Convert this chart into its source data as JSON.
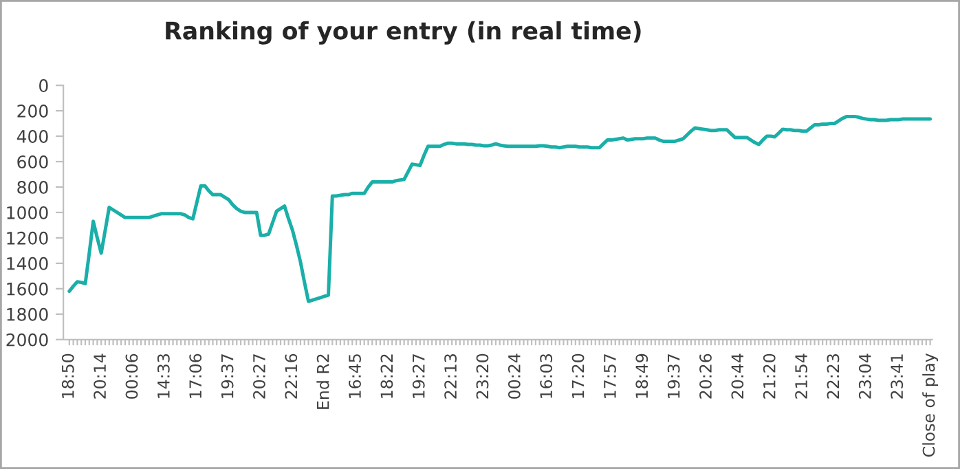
{
  "chart_data": {
    "type": "line",
    "title": "Ranking of your entry (in real time)",
    "categories": [
      "18:50",
      null,
      null,
      null,
      null,
      null,
      null,
      null,
      "20:14",
      null,
      null,
      null,
      null,
      null,
      null,
      null,
      "00:06",
      null,
      null,
      null,
      null,
      null,
      null,
      null,
      "14:33",
      null,
      null,
      null,
      null,
      null,
      null,
      null,
      "17:06",
      null,
      null,
      null,
      null,
      null,
      null,
      null,
      "19:37",
      null,
      null,
      null,
      null,
      null,
      null,
      null,
      "20:27",
      null,
      null,
      null,
      null,
      null,
      null,
      null,
      "22:16",
      null,
      null,
      null,
      null,
      null,
      null,
      null,
      "End R2",
      null,
      null,
      null,
      null,
      null,
      null,
      null,
      "16:45",
      null,
      null,
      null,
      null,
      null,
      null,
      null,
      "18:22",
      null,
      null,
      null,
      null,
      null,
      null,
      null,
      "19:27",
      null,
      null,
      null,
      null,
      null,
      null,
      null,
      "22:13",
      null,
      null,
      null,
      null,
      null,
      null,
      null,
      "23:20",
      null,
      null,
      null,
      null,
      null,
      null,
      null,
      "00:24",
      null,
      null,
      null,
      null,
      null,
      null,
      null,
      "16:03",
      null,
      null,
      null,
      null,
      null,
      null,
      null,
      "17:20",
      null,
      null,
      null,
      null,
      null,
      null,
      null,
      "17:57",
      null,
      null,
      null,
      null,
      null,
      null,
      null,
      "18:49",
      null,
      null,
      null,
      null,
      null,
      null,
      null,
      "19:37",
      null,
      null,
      null,
      null,
      null,
      null,
      null,
      "20:26",
      null,
      null,
      null,
      null,
      null,
      null,
      null,
      "20:44",
      null,
      null,
      null,
      null,
      null,
      null,
      null,
      "21:20",
      null,
      null,
      null,
      null,
      null,
      null,
      null,
      "21:54",
      null,
      null,
      null,
      null,
      null,
      null,
      null,
      "22:23",
      null,
      null,
      null,
      null,
      null,
      null,
      null,
      "23:04",
      null,
      null,
      null,
      null,
      null,
      null,
      null,
      "23:41",
      null,
      null,
      null,
      null,
      null,
      null,
      null,
      "Close of play"
    ],
    "series": [
      {
        "color": "#1aafa8",
        "values": [
          1620,
          1580,
          1545,
          1550,
          1560,
          1320,
          1070,
          1200,
          1320,
          1140,
          960,
          980,
          1000,
          1020,
          1040,
          1040,
          1040,
          1040,
          1040,
          1040,
          1040,
          1030,
          1020,
          1010,
          1010,
          1010,
          1010,
          1010,
          1010,
          1020,
          1040,
          1050,
          920,
          790,
          790,
          830,
          860,
          860,
          860,
          880,
          900,
          940,
          970,
          990,
          1000,
          1000,
          1000,
          1000,
          1180,
          1180,
          1170,
          1080,
          990,
          970,
          950,
          1050,
          1140,
          1260,
          1390,
          1550,
          1700,
          1690,
          1680,
          1670,
          1660,
          1650,
          870,
          870,
          865,
          860,
          860,
          850,
          850,
          850,
          850,
          800,
          760,
          760,
          760,
          760,
          760,
          760,
          750,
          745,
          740,
          680,
          620,
          625,
          630,
          550,
          480,
          480,
          480,
          480,
          465,
          455,
          455,
          460,
          460,
          460,
          465,
          465,
          470,
          470,
          475,
          475,
          470,
          460,
          470,
          475,
          480,
          480,
          480,
          480,
          480,
          480,
          480,
          480,
          475,
          475,
          480,
          485,
          485,
          490,
          485,
          480,
          480,
          480,
          485,
          485,
          485,
          490,
          490,
          490,
          460,
          430,
          430,
          425,
          420,
          415,
          430,
          425,
          420,
          420,
          420,
          415,
          415,
          415,
          430,
          440,
          440,
          440,
          440,
          430,
          420,
          390,
          360,
          335,
          340,
          345,
          350,
          355,
          355,
          350,
          350,
          350,
          380,
          410,
          410,
          410,
          410,
          430,
          450,
          465,
          430,
          400,
          400,
          405,
          375,
          345,
          350,
          350,
          355,
          355,
          360,
          360,
          335,
          310,
          310,
          305,
          305,
          300,
          300,
          280,
          260,
          245,
          245,
          245,
          250,
          260,
          265,
          270,
          270,
          275,
          275,
          275,
          270,
          270,
          270,
          265,
          265,
          265,
          265,
          265,
          265,
          265,
          265
        ]
      }
    ],
    "ylim": [
      2000,
      0
    ],
    "yticks": [
      0,
      200,
      400,
      600,
      800,
      1000,
      1200,
      1400,
      1600,
      1800,
      2000
    ]
  }
}
